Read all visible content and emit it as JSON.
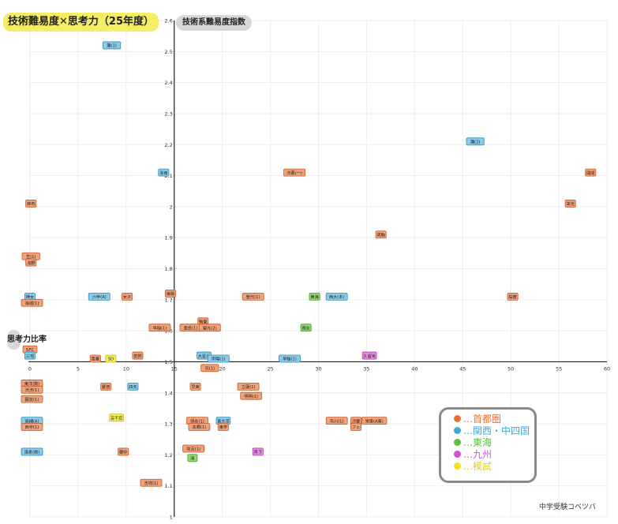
{
  "title": "技術難易度✕思考力（25年度）",
  "xlabel": "技術系難易度指数",
  "ylabel": "思考力比率",
  "credit": "中学受験コベツバ",
  "colors": {
    "title_highlight": "#f3ee63",
    "axis_pill": "#d8d8d8",
    "grid": "#eeeeee",
    "axis": "#222222"
  },
  "chart_data": {
    "type": "scatter",
    "title": "技術難易度✕思考力（25年度）",
    "xlabel": "技術系難易度指数",
    "ylabel": "思考力比率",
    "xlim": [
      0,
      60
    ],
    "ylim": [
      1,
      2.6
    ],
    "x_ticks": [
      0,
      5,
      10,
      15,
      20,
      25,
      30,
      35,
      40,
      45,
      50,
      55,
      60
    ],
    "y_ticks": [
      1,
      1.1,
      1.2,
      1.3,
      1.4,
      1.5,
      1.6,
      1.7,
      1.8,
      1.9,
      2,
      2.1,
      2.2,
      2.3,
      2.4,
      2.5,
      2.6
    ],
    "y_tick_labels": [
      "1",
      "1.1",
      "1.2",
      "1.3",
      "1.4",
      "1.5",
      "1.6",
      "1.7",
      "1.8",
      "1.9",
      "2",
      "2.1",
      "2.2",
      "2.3",
      "2.4",
      "2.5",
      "2.6"
    ],
    "crossing": {
      "x": 15,
      "y": 1.5
    },
    "grid": true,
    "legend_placement": "bottom-right",
    "series": [
      {
        "name": "…首都圏",
        "color": "#e9712f",
        "fill": "#f0a27b",
        "border": "#c65a24"
      },
      {
        "name": "…関西・中四国",
        "color": "#3ea9d6",
        "fill": "#8ccbe8",
        "border": "#2f8db8"
      },
      {
        "name": "…東海",
        "color": "#5cbf3a",
        "fill": "#93d474",
        "border": "#4a9e2d"
      },
      {
        "name": "…九州",
        "color": "#d74ed6",
        "fill": "#e58fe3",
        "border": "#b13bb0"
      },
      {
        "name": "…模試",
        "color": "#f2e21c",
        "fill": "#f3ee63",
        "border": "#c9bb15"
      }
    ],
    "points": [
      {
        "label": "灘(1)",
        "x": 8.5,
        "y": 2.52,
        "s": 1
      },
      {
        "label": "灘(2)",
        "x": 46.3,
        "y": 2.21,
        "s": 1
      },
      {
        "label": "洛南",
        "x": 13.9,
        "y": 2.11,
        "s": 1
      },
      {
        "label": "渋幕(一)",
        "x": 27.5,
        "y": 2.11,
        "s": 0
      },
      {
        "label": "開成",
        "x": 58.3,
        "y": 2.11,
        "s": 0
      },
      {
        "label": "麻布",
        "x": 0.1,
        "y": 2.01,
        "s": 0
      },
      {
        "label": "栄光",
        "x": 56.2,
        "y": 2.01,
        "s": 0
      },
      {
        "label": "筑駒",
        "x": 36.5,
        "y": 1.91,
        "s": 0
      },
      {
        "label": "芝(1)",
        "x": 0.1,
        "y": 1.84,
        "s": 0
      },
      {
        "label": "浅野",
        "x": 0.1,
        "y": 1.82,
        "s": 0
      },
      {
        "label": "六甲(A)",
        "x": 7.2,
        "y": 1.71,
        "s": 1
      },
      {
        "label": "女子",
        "x": 10.1,
        "y": 1.71,
        "s": 0
      },
      {
        "label": "海陽",
        "x": 14.6,
        "y": 1.72,
        "s": 0
      },
      {
        "label": "聖光(1)",
        "x": 23.2,
        "y": 1.71,
        "s": 0
      },
      {
        "label": "東海",
        "x": 29.6,
        "y": 1.71,
        "s": 2
      },
      {
        "label": "西大(本)",
        "x": 31.9,
        "y": 1.71,
        "s": 1
      },
      {
        "label": "桜蔭",
        "x": 50.2,
        "y": 1.71,
        "s": 0
      },
      {
        "label": "神女",
        "x": 0,
        "y": 1.71,
        "s": 1
      },
      {
        "label": "海城(1)",
        "x": 0,
        "y": 1.69,
        "s": 0
      },
      {
        "label": "駒東",
        "x": 18,
        "y": 1.63,
        "s": 0
      },
      {
        "label": "豊島(1)",
        "x": 16.7,
        "y": 1.61,
        "s": 0
      },
      {
        "label": "聖光(2)",
        "x": 18.7,
        "y": 1.61,
        "s": 0
      },
      {
        "label": "南女",
        "x": 28.7,
        "y": 1.61,
        "s": 2
      },
      {
        "label": "早稲(1)",
        "x": 13.5,
        "y": 1.61,
        "s": 0
      },
      {
        "label": "SFC",
        "x": 0,
        "y": 1.54,
        "s": 0
      },
      {
        "label": "三宅",
        "x": 0,
        "y": 1.52,
        "s": 1
      },
      {
        "label": "豊蕃",
        "x": 6.8,
        "y": 1.51,
        "s": 0
      },
      {
        "label": "SD",
        "x": 8.4,
        "y": 1.51,
        "s": 4
      },
      {
        "label": "筑附",
        "x": 11.2,
        "y": 1.52,
        "s": 0
      },
      {
        "label": "大星大",
        "x": 18.1,
        "y": 1.52,
        "s": 1
      },
      {
        "label": "甲陽(1)",
        "x": 19.6,
        "y": 1.51,
        "s": 1
      },
      {
        "label": "早稲(1)",
        "x": 27,
        "y": 1.51,
        "s": 1
      },
      {
        "label": "久留米",
        "x": 35.3,
        "y": 1.52,
        "s": 3
      },
      {
        "label": "渋(1)",
        "x": 18.7,
        "y": 1.48,
        "s": 0
      },
      {
        "label": "東洋(数)",
        "x": 0,
        "y": 1.43,
        "s": 0
      },
      {
        "label": "渋渋(1)",
        "x": 0,
        "y": 1.41,
        "s": 0
      },
      {
        "label": "鷗友(1)",
        "x": 0,
        "y": 1.38,
        "s": 0
      },
      {
        "label": "慶普",
        "x": 7.9,
        "y": 1.42,
        "s": 0
      },
      {
        "label": "四天",
        "x": 10.7,
        "y": 1.42,
        "s": 1
      },
      {
        "label": "早実",
        "x": 17.2,
        "y": 1.42,
        "s": 0
      },
      {
        "label": "立蓮(1)",
        "x": 22.7,
        "y": 1.42,
        "s": 0
      },
      {
        "label": "明明(1)",
        "x": 23,
        "y": 1.39,
        "s": 0
      },
      {
        "label": "吉不忍",
        "x": 9,
        "y": 1.32,
        "s": 4
      },
      {
        "label": "高槻(A)",
        "x": 0,
        "y": 1.31,
        "s": 1
      },
      {
        "label": "西宇(1)",
        "x": 0,
        "y": 1.29,
        "s": 0
      },
      {
        "label": "須永(1)",
        "x": 17.4,
        "y": 1.31,
        "s": 0
      },
      {
        "label": "本郷(1)",
        "x": 17.6,
        "y": 1.29,
        "s": 0
      },
      {
        "label": "東大寺",
        "x": 20.1,
        "y": 1.31,
        "s": 1
      },
      {
        "label": "東学",
        "x": 20.1,
        "y": 1.29,
        "s": 0
      },
      {
        "label": "市川(1)",
        "x": 31.9,
        "y": 1.31,
        "s": 0
      },
      {
        "label": "渋慶",
        "x": 33.9,
        "y": 1.31,
        "s": 0
      },
      {
        "label": "栄東(A東)",
        "x": 35.8,
        "y": 1.31,
        "s": 0
      },
      {
        "label": "フェ",
        "x": 33.9,
        "y": 1.29,
        "s": 0
      },
      {
        "label": "洛星(前)",
        "x": 0,
        "y": 1.21,
        "s": 1
      },
      {
        "label": "慶中",
        "x": 9.7,
        "y": 1.21,
        "s": 0
      },
      {
        "label": "攻玉(1)",
        "x": 17,
        "y": 1.22,
        "s": 0
      },
      {
        "label": "滝",
        "x": 16.9,
        "y": 1.19,
        "s": 2
      },
      {
        "label": "青ラ",
        "x": 23.7,
        "y": 1.21,
        "s": 3
      },
      {
        "label": "吉祥(1)",
        "x": 12.6,
        "y": 1.11,
        "s": 0
      }
    ]
  }
}
